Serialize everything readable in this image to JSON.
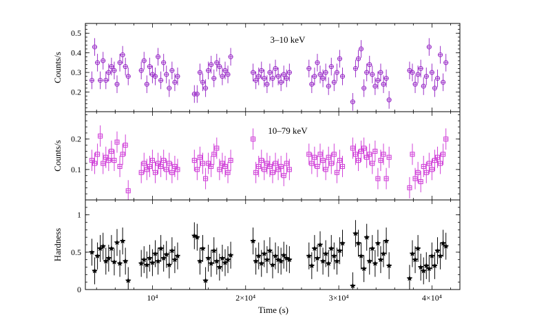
{
  "chart_data": [
    {
      "type": "scatter",
      "panel": "soft",
      "label": "3–10 keV",
      "ylabel": "Counts/s",
      "ylim": [
        0.1,
        0.55
      ],
      "yticks": [
        0.2,
        0.3,
        0.4,
        0.5
      ],
      "ytick_labels": [
        "0.2",
        "0.3",
        "0.4",
        "0.5"
      ],
      "marker": "circle",
      "color": "#9b30c8",
      "yerr": 0.045,
      "segments": [
        {
          "x": [
            3500,
            3800,
            4100,
            4400,
            4700,
            5000,
            5300,
            5600,
            5900,
            6200,
            6500,
            6800,
            7100,
            7400
          ],
          "y": [
            0.26,
            0.43,
            0.35,
            0.26,
            0.36,
            0.26,
            0.3,
            0.33,
            0.31,
            0.24,
            0.35,
            0.39,
            0.33,
            0.28
          ]
        },
        {
          "x": [
            8800,
            9100,
            9400,
            9700,
            10000,
            10300,
            10600,
            10900,
            11200,
            11500,
            11800,
            12100,
            12400,
            12700
          ],
          "y": [
            0.31,
            0.36,
            0.24,
            0.33,
            0.29,
            0.28,
            0.38,
            0.26,
            0.35,
            0.29,
            0.22,
            0.31,
            0.25,
            0.28
          ]
        },
        {
          "x": [
            14500,
            14800,
            15100,
            15400,
            15700,
            16000,
            16300,
            16600,
            16900,
            17200,
            17500,
            17800,
            18100,
            18400
          ],
          "y": [
            0.19,
            0.19,
            0.3,
            0.25,
            0.22,
            0.31,
            0.34,
            0.27,
            0.35,
            0.33,
            0.28,
            0.31,
            0.29,
            0.38
          ]
        },
        {
          "x": [
            20800,
            21100,
            21400,
            21700,
            22000,
            22300,
            22600,
            22900,
            23200,
            23500,
            23800,
            24100,
            24400,
            24700
          ],
          "y": [
            0.3,
            0.26,
            0.28,
            0.31,
            0.27,
            0.24,
            0.3,
            0.27,
            0.32,
            0.28,
            0.25,
            0.29,
            0.27,
            0.3
          ]
        },
        {
          "x": [
            26800,
            27100,
            27400,
            27700,
            28000,
            28300,
            28600,
            28900,
            29200,
            29500,
            29800,
            30100,
            30400
          ],
          "y": [
            0.32,
            0.24,
            0.28,
            0.35,
            0.29,
            0.27,
            0.3,
            0.23,
            0.33,
            0.25,
            0.3,
            0.37,
            0.28
          ]
        },
        {
          "x": [
            31500,
            31800,
            32100,
            32400,
            32700,
            33000,
            33300,
            33600,
            33900,
            34200,
            34500,
            34800,
            35100,
            35400
          ],
          "y": [
            0.15,
            0.32,
            0.37,
            0.42,
            0.22,
            0.3,
            0.34,
            0.29,
            0.23,
            0.26,
            0.3,
            0.24,
            0.27,
            0.16
          ]
        },
        {
          "x": [
            37600,
            37900,
            38200,
            38500,
            38800,
            39100,
            39400,
            39700,
            40000,
            40300,
            40600,
            40900,
            41200,
            41500
          ],
          "y": [
            0.31,
            0.3,
            0.24,
            0.29,
            0.32,
            0.23,
            0.28,
            0.43,
            0.3,
            0.22,
            0.27,
            0.39,
            0.25,
            0.35
          ]
        }
      ]
    },
    {
      "type": "scatter",
      "panel": "hard",
      "label": "10–79 keV",
      "ylabel": "Counts/s",
      "ylim": [
        0.0,
        0.29
      ],
      "yticks": [
        0.1,
        0.2
      ],
      "ytick_labels": [
        "0.1",
        "0.2"
      ],
      "marker": "square",
      "color": "#d040d8",
      "yerr": 0.035,
      "segments": [
        {
          "x": [
            3500,
            3800,
            4100,
            4400,
            4700,
            5000,
            5300,
            5600,
            5900,
            6200,
            6500,
            6800,
            7100,
            7400
          ],
          "y": [
            0.13,
            0.12,
            0.15,
            0.21,
            0.12,
            0.14,
            0.13,
            0.16,
            0.13,
            0.19,
            0.11,
            0.15,
            0.18,
            0.03
          ]
        },
        {
          "x": [
            8800,
            9100,
            9400,
            9700,
            10000,
            10300,
            10600,
            10900,
            11200,
            11500,
            11800,
            12100,
            12400,
            12700
          ],
          "y": [
            0.09,
            0.12,
            0.1,
            0.11,
            0.13,
            0.09,
            0.12,
            0.11,
            0.13,
            0.1,
            0.12,
            0.09,
            0.11,
            0.1
          ]
        },
        {
          "x": [
            14500,
            14800,
            15100,
            15400,
            15700,
            16000,
            16300,
            16600,
            16900,
            17200,
            17500,
            17800,
            18100,
            18400
          ],
          "y": [
            0.13,
            0.1,
            0.14,
            0.12,
            0.07,
            0.12,
            0.11,
            0.15,
            0.17,
            0.1,
            0.12,
            0.11,
            0.09,
            0.13
          ]
        },
        {
          "x": [
            20800,
            21100,
            21400,
            21700,
            22000,
            22300,
            22600,
            22900,
            23200,
            23500,
            23800,
            24100,
            24400,
            24700
          ],
          "y": [
            0.2,
            0.09,
            0.11,
            0.13,
            0.1,
            0.12,
            0.11,
            0.09,
            0.12,
            0.1,
            0.11,
            0.08,
            0.12,
            0.1
          ]
        },
        {
          "x": [
            26800,
            27100,
            27400,
            27700,
            28000,
            28300,
            28600,
            28900,
            29200,
            29500,
            29800,
            30100,
            30400
          ],
          "y": [
            0.15,
            0.12,
            0.14,
            0.11,
            0.15,
            0.13,
            0.1,
            0.14,
            0.12,
            0.15,
            0.09,
            0.13,
            0.11
          ]
        },
        {
          "x": [
            31500,
            31800,
            32100,
            32400,
            32700,
            33000,
            33300,
            33600,
            33900,
            34200,
            34500,
            34800,
            35100,
            35400
          ],
          "y": [
            0.17,
            0.15,
            0.13,
            0.16,
            0.17,
            0.14,
            0.15,
            0.12,
            0.16,
            0.07,
            0.13,
            0.15,
            0.07,
            0.14
          ]
        },
        {
          "x": [
            37600,
            37900,
            38200,
            38500,
            38800,
            39100,
            39400,
            39700,
            40000,
            40300,
            40600,
            40900,
            41200,
            41500
          ],
          "y": [
            0.04,
            0.15,
            0.07,
            0.09,
            0.06,
            0.11,
            0.09,
            0.12,
            0.1,
            0.13,
            0.14,
            0.12,
            0.15,
            0.2
          ]
        }
      ]
    },
    {
      "type": "scatter",
      "panel": "ratio",
      "label": "",
      "ylabel": "Hardness",
      "ylim": [
        0.0,
        1.2
      ],
      "yticks": [
        0.0,
        0.5,
        1.0
      ],
      "ytick_labels": [
        "0",
        "0.5",
        "1"
      ],
      "marker": "star",
      "color": "#000000",
      "yerr": 0.18,
      "segments": [
        {
          "x": [
            3500,
            3800,
            4100,
            4400,
            4700,
            5000,
            5300,
            5600,
            5900,
            6200,
            6500,
            6800,
            7100,
            7400
          ],
          "y": [
            0.5,
            0.25,
            0.45,
            0.55,
            0.58,
            0.38,
            0.42,
            0.55,
            0.37,
            0.63,
            0.35,
            0.65,
            0.38,
            0.12
          ]
        },
        {
          "x": [
            8800,
            9100,
            9400,
            9700,
            10000,
            10300,
            10600,
            10900,
            11200,
            11500,
            11800,
            12100,
            12400,
            12700
          ],
          "y": [
            0.35,
            0.4,
            0.33,
            0.42,
            0.36,
            0.48,
            0.38,
            0.55,
            0.42,
            0.47,
            0.33,
            0.52,
            0.4,
            0.45
          ]
        },
        {
          "x": [
            14500,
            14800,
            15100,
            15400,
            15700,
            16000,
            16300,
            16600,
            16900,
            17200,
            17500,
            17800,
            18100,
            18400
          ],
          "y": [
            0.72,
            0.7,
            0.38,
            0.55,
            0.12,
            0.42,
            0.35,
            0.52,
            0.38,
            0.3,
            0.42,
            0.36,
            0.4,
            0.46
          ]
        },
        {
          "x": [
            20800,
            21100,
            21400,
            21700,
            22000,
            22300,
            22600,
            22900,
            23200,
            23500,
            23800,
            24100,
            24400,
            24700
          ],
          "y": [
            0.65,
            0.38,
            0.45,
            0.35,
            0.48,
            0.4,
            0.52,
            0.33,
            0.45,
            0.4,
            0.38,
            0.46,
            0.42,
            0.4
          ]
        },
        {
          "x": [
            26800,
            27100,
            27400,
            27700,
            28000,
            28300,
            28600,
            28900,
            29200,
            29500,
            29800,
            30100,
            30400
          ],
          "y": [
            0.45,
            0.32,
            0.55,
            0.42,
            0.6,
            0.38,
            0.48,
            0.35,
            0.55,
            0.45,
            0.38,
            0.52,
            0.62
          ]
        },
        {
          "x": [
            31500,
            31800,
            32100,
            32400,
            32700,
            33000,
            33300,
            33600,
            33900,
            34200,
            34500,
            34800,
            35100,
            35400
          ],
          "y": [
            0.05,
            0.75,
            0.62,
            0.45,
            0.28,
            0.7,
            0.38,
            0.55,
            0.35,
            0.62,
            0.4,
            0.48,
            0.65,
            0.32
          ]
        },
        {
          "x": [
            37600,
            37900,
            38200,
            38500,
            38800,
            39100,
            39400,
            39700,
            40000,
            40300,
            40600,
            40900,
            41200,
            41500
          ],
          "y": [
            0.15,
            0.48,
            0.4,
            0.55,
            0.3,
            0.25,
            0.32,
            0.28,
            0.45,
            0.32,
            0.52,
            0.45,
            0.62,
            0.58
          ]
        }
      ]
    }
  ],
  "x_axis": {
    "xlabel": "Time (s)",
    "xlim": [
      2800,
      43000
    ],
    "major_ticks": [
      10000,
      20000,
      30000,
      40000
    ],
    "tick_labels": [
      "10⁴",
      "2×10⁴",
      "3×10⁴",
      "4×10⁴"
    ],
    "minor_step": 2000
  }
}
